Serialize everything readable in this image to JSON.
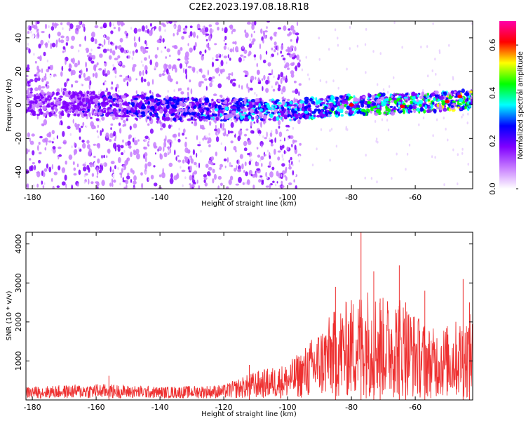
{
  "title": "C2E2.2023.197.08.18.R18",
  "spectrogram": {
    "chart_data": {
      "type": "heatmap",
      "title": "C2E2.2023.197.08.18.R18",
      "xlabel": "Height of straight line (km)",
      "ylabel": "Frequency (Hz)",
      "xlim": [
        -182,
        -42
      ],
      "ylim": [
        -50,
        50
      ],
      "xticks": [
        -180,
        -160,
        -140,
        -120,
        -100,
        -80,
        -60
      ],
      "yticks": [
        -40,
        -20,
        0,
        20,
        40
      ],
      "colorbar": {
        "label": "Normalized spectral amplitude",
        "range": [
          0.0,
          0.7
        ],
        "ticks": [
          "0.0",
          "0.2",
          "0.4",
          "0.6"
        ],
        "colormap": [
          "#ffffff",
          "#c77dff",
          "#8000ff",
          "#0000ff",
          "#00ffff",
          "#00ff00",
          "#ffff00",
          "#ff0000",
          "#ff00aa"
        ]
      },
      "features": {
        "noise_region": [
          -182,
          -100
        ],
        "clean_region_start": -100,
        "signal_band_center_hz": [
          {
            "x": -180,
            "y": 0
          },
          {
            "x": -160,
            "y": 1
          },
          {
            "x": -140,
            "y": -2
          },
          {
            "x": -120,
            "y": -3
          },
          {
            "x": -100,
            "y": -3
          },
          {
            "x": -80,
            "y": 0
          },
          {
            "x": -60,
            "y": 1
          },
          {
            "x": -44,
            "y": 3
          }
        ],
        "peak_amplitude_points": [
          {
            "x": -80,
            "y": 0,
            "amp": 0.65
          },
          {
            "x": -64,
            "y": -1,
            "amp": 0.62
          },
          {
            "x": -50,
            "y": 2,
            "amp": 0.6
          },
          {
            "x": -46,
            "y": 5,
            "amp": 0.62
          }
        ]
      }
    }
  },
  "snr": {
    "chart_data": {
      "type": "line",
      "xlabel": "Height of straight line (km)",
      "ylabel": "SNR (10 * v/v)",
      "xlim": [
        -182,
        -42
      ],
      "ylim": [
        0,
        4300
      ],
      "xticks": [
        -180,
        -160,
        -140,
        -120,
        -100,
        -80,
        -60
      ],
      "yticks": [
        1000,
        2000,
        3000,
        4000
      ],
      "color": "#ee3030",
      "envelope": [
        {
          "x": -182,
          "y": 300
        },
        {
          "x": -160,
          "y": 380
        },
        {
          "x": -140,
          "y": 300
        },
        {
          "x": -120,
          "y": 350
        },
        {
          "x": -110,
          "y": 700
        },
        {
          "x": -100,
          "y": 900
        },
        {
          "x": -95,
          "y": 1300
        },
        {
          "x": -90,
          "y": 1800
        },
        {
          "x": -85,
          "y": 2300
        },
        {
          "x": -80,
          "y": 2600
        },
        {
          "x": -75,
          "y": 2900
        },
        {
          "x": -70,
          "y": 2600
        },
        {
          "x": -65,
          "y": 2700
        },
        {
          "x": -60,
          "y": 2200
        },
        {
          "x": -55,
          "y": 1800
        },
        {
          "x": -50,
          "y": 1900
        },
        {
          "x": -45,
          "y": 2100
        },
        {
          "x": -42,
          "y": 2200
        }
      ],
      "peaks": [
        {
          "x": -156,
          "y": 620
        },
        {
          "x": -112,
          "y": 900
        },
        {
          "x": -85,
          "y": 2900
        },
        {
          "x": -77,
          "y": 4300
        },
        {
          "x": -73,
          "y": 3300
        },
        {
          "x": -71,
          "y": 2600
        },
        {
          "x": -65,
          "y": 3450
        },
        {
          "x": -63,
          "y": 2500
        },
        {
          "x": -57,
          "y": 2800
        },
        {
          "x": -45,
          "y": 3100
        },
        {
          "x": -43,
          "y": 2500
        }
      ]
    }
  }
}
